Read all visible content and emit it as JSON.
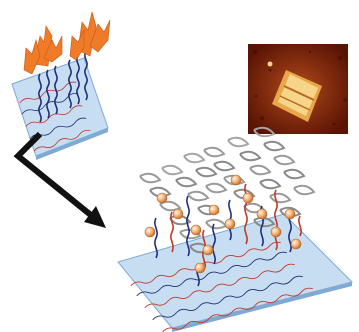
{
  "figure": {
    "panels": [
      {
        "id": "initial-sheet",
        "icon": "dna-origami-sheet-with-protruding-strands"
      },
      {
        "id": "afm-image",
        "icon": "afm-micrograph-rectangular-structure"
      },
      {
        "id": "assembled-structure",
        "icon": "dna-origami-with-helical-bundles-and-nanoparticles"
      }
    ],
    "arrow": "process-arrow",
    "colors": {
      "sheet_top": "#c7ddf1",
      "sheet_side": "#7eaad4",
      "dna_blue": "#1e2f78",
      "dna_red": "#c0392b",
      "strand_orange": "#ef7a28",
      "helix_gray": "#8a8a8a",
      "particle": "#f0b27a",
      "afm_background": "#8a2a0a",
      "afm_feature": "#f6d58a"
    }
  }
}
